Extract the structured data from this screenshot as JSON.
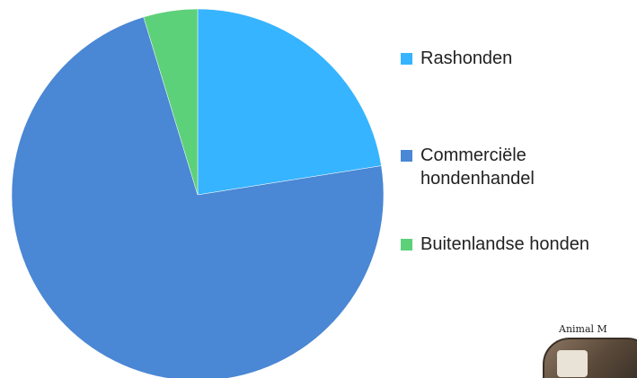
{
  "chart_data": {
    "type": "pie",
    "slices": [
      {
        "label": "Rashonden",
        "value": 22.5,
        "color": "#36b4ff"
      },
      {
        "label": "Commerciële\nhondenhandel",
        "value": 72.8,
        "color": "#4a87d4"
      },
      {
        "label": "Buitenlandse honden",
        "value": 4.7,
        "color": "#5dd07a"
      }
    ],
    "start_angle_deg": 0,
    "direction": "clockwise",
    "legend_placement": "right",
    "title": ""
  },
  "logo": {
    "text": "Animal M"
  }
}
